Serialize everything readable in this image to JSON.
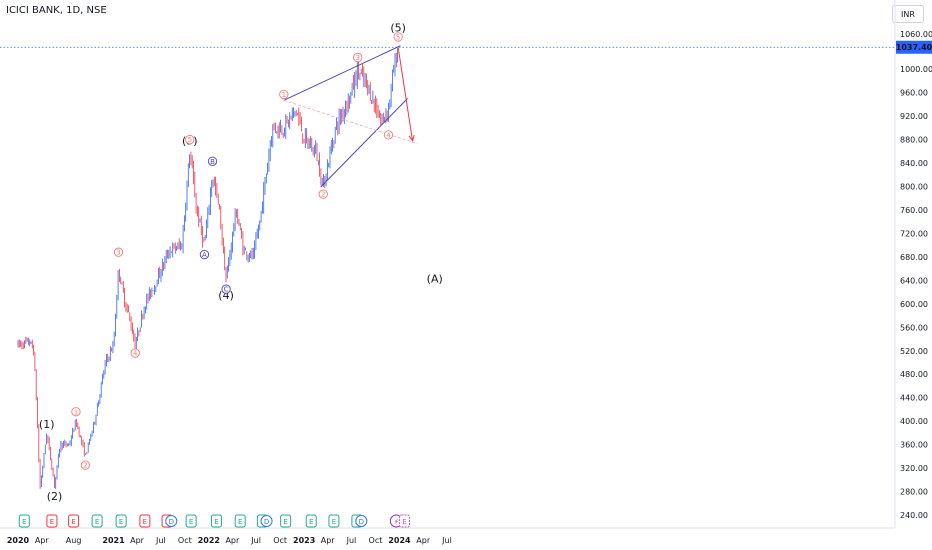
{
  "header": {
    "symbol": "ICICI BANK, 1D, NSE",
    "currency": "INR"
  },
  "last_price": "1037.40",
  "colors": {
    "up": "#2962ff",
    "down": "#f23645",
    "pattern": "#4a45b8",
    "minor": "#f77a7a",
    "earnings": "#22ab94",
    "dividend": "#3179f5"
  },
  "chart_data": {
    "type": "candlestick",
    "ylim": [
      230,
      1085
    ],
    "y_ticks": [
      "1060.00",
      "1000.00",
      "960.00",
      "920.00",
      "880.00",
      "840.00",
      "800.00",
      "760.00",
      "720.00",
      "680.00",
      "640.00",
      "600.00",
      "560.00",
      "520.00",
      "480.00",
      "440.00",
      "400.00",
      "360.00",
      "320.00",
      "280.00",
      "240.00"
    ],
    "x_ticks": [
      "2020",
      "Apr",
      "Aug",
      "2021",
      "Apr",
      "Jul",
      "Oct",
      "2022",
      "Apr",
      "Jul",
      "Oct",
      "2023",
      "Apr",
      "Jul",
      "Oct",
      "2024",
      "Apr",
      "Jul"
    ],
    "price_path": [
      [
        "2020-01-01",
        530
      ],
      [
        "2020-02-15",
        535
      ],
      [
        "2020-03-01",
        520
      ],
      [
        "2020-03-12",
        430
      ],
      [
        "2020-03-25",
        285
      ],
      [
        "2020-04-20",
        380
      ],
      [
        "2020-05-20",
        290
      ],
      [
        "2020-06-10",
        360
      ],
      [
        "2020-07-15",
        360
      ],
      [
        "2020-08-10",
        400
      ],
      [
        "2020-09-15",
        340
      ],
      [
        "2020-10-20",
        400
      ],
      [
        "2020-12-01",
        500
      ],
      [
        "2021-01-01",
        530
      ],
      [
        "2021-01-20",
        660
      ],
      [
        "2021-02-10",
        610
      ],
      [
        "2021-03-01",
        580
      ],
      [
        "2021-03-25",
        530
      ],
      [
        "2021-05-01",
        600
      ],
      [
        "2021-06-15",
        640
      ],
      [
        "2021-08-01",
        690
      ],
      [
        "2021-09-20",
        700
      ],
      [
        "2021-10-20",
        860
      ],
      [
        "2021-11-15",
        760
      ],
      [
        "2021-12-15",
        700
      ],
      [
        "2022-01-15",
        820
      ],
      [
        "2022-02-10",
        760
      ],
      [
        "2022-03-08",
        640
      ],
      [
        "2022-04-15",
        760
      ],
      [
        "2022-05-15",
        690
      ],
      [
        "2022-06-20",
        680
      ],
      [
        "2022-07-15",
        740
      ],
      [
        "2022-09-01",
        900
      ],
      [
        "2022-10-15",
        900
      ],
      [
        "2022-12-01",
        930
      ],
      [
        "2023-01-01",
        880
      ],
      [
        "2023-02-15",
        860
      ],
      [
        "2023-03-15",
        800
      ],
      [
        "2023-05-01",
        900
      ],
      [
        "2023-07-01",
        960
      ],
      [
        "2023-07-25",
        1000
      ],
      [
        "2023-09-10",
        960
      ],
      [
        "2023-10-25",
        910
      ],
      [
        "2023-11-20",
        935
      ],
      [
        "2023-12-10",
        1000
      ],
      [
        "2023-12-27",
        1037
      ]
    ],
    "waves_major": [
      {
        "label": "(1)",
        "date": "2020-04-20",
        "price": 395
      },
      {
        "label": "(2)",
        "date": "2020-05-20",
        "price": 272
      },
      {
        "label": "(3)",
        "date": "2021-10-20",
        "price": 878
      },
      {
        "label": "(4)",
        "date": "2022-03-08",
        "price": 615
      },
      {
        "label": "(5)",
        "date": "2023-12-27",
        "price": 1071
      },
      {
        "label": "(A)",
        "date": "2024-05-15",
        "price": 643
      }
    ],
    "waves_minor": [
      {
        "label": "1",
        "date": "2020-08-10",
        "price": 416,
        "style": "minor"
      },
      {
        "label": "2",
        "date": "2020-09-15",
        "price": 325,
        "style": "minor"
      },
      {
        "label": "3",
        "date": "2021-01-20",
        "price": 688,
        "style": "minor"
      },
      {
        "label": "4",
        "date": "2021-03-25",
        "price": 516,
        "style": "minor"
      },
      {
        "label": "5",
        "date": "2021-10-20",
        "price": 880,
        "style": "minor"
      },
      {
        "label": "A",
        "date": "2021-12-15",
        "price": 684,
        "style": "pattern"
      },
      {
        "label": "B",
        "date": "2022-01-15",
        "price": 843,
        "style": "pattern"
      },
      {
        "label": "C",
        "date": "2022-03-08",
        "price": 625,
        "style": "pattern"
      },
      {
        "label": "1",
        "date": "2022-10-15",
        "price": 957,
        "style": "minor"
      },
      {
        "label": "2",
        "date": "2023-03-15",
        "price": 787,
        "style": "minor"
      },
      {
        "label": "3",
        "date": "2023-07-25",
        "price": 1020,
        "style": "minor"
      },
      {
        "label": "4",
        "date": "2023-11-20",
        "price": 888,
        "style": "minor"
      },
      {
        "label": "5",
        "date": "2023-12-27",
        "price": 1055,
        "style": "minor"
      }
    ],
    "trendlines": [
      {
        "from": [
          "2022-10-15",
          947
        ],
        "to": [
          "2024-01-05",
          1040
        ],
        "style": "pattern"
      },
      {
        "from": [
          "2023-03-05",
          799
        ],
        "to": [
          "2024-02-01",
          950
        ],
        "style": "pattern"
      },
      {
        "from": [
          "2022-10-15",
          947
        ],
        "to": [
          "2024-03-10",
          873
        ],
        "style": "faint"
      },
      {
        "from": [
          "2023-12-27",
          1037
        ],
        "to": [
          "2024-02-20",
          878
        ],
        "style": "arrow"
      }
    ],
    "events": [
      {
        "type": "E",
        "date": "2020-01-25",
        "color": "earnings"
      },
      {
        "type": "E",
        "date": "2020-05-10",
        "color": "down"
      },
      {
        "type": "E",
        "date": "2020-08-01",
        "color": "down"
      },
      {
        "type": "E",
        "date": "2020-10-30",
        "color": "earnings"
      },
      {
        "type": "E",
        "date": "2021-01-30",
        "color": "earnings"
      },
      {
        "type": "E",
        "date": "2021-05-01",
        "color": "down"
      },
      {
        "type": "E",
        "date": "2021-07-25",
        "color": "down"
      },
      {
        "type": "D",
        "date": "2021-08-10",
        "color": "dividend"
      },
      {
        "type": "E",
        "date": "2021-10-25",
        "color": "earnings"
      },
      {
        "type": "E",
        "date": "2022-01-30",
        "color": "earnings"
      },
      {
        "type": "E",
        "date": "2022-05-01",
        "color": "earnings"
      },
      {
        "type": "E",
        "date": "2022-07-25",
        "color": "earnings"
      },
      {
        "type": "D",
        "date": "2022-08-10",
        "color": "dividend"
      },
      {
        "type": "E",
        "date": "2022-10-22",
        "color": "earnings"
      },
      {
        "type": "E",
        "date": "2023-01-28",
        "color": "earnings"
      },
      {
        "type": "E",
        "date": "2023-04-25",
        "color": "earnings"
      },
      {
        "type": "E",
        "date": "2023-07-22",
        "color": "earnings"
      },
      {
        "type": "D",
        "date": "2023-08-08",
        "color": "dividend"
      },
      {
        "type": "S",
        "date": "2023-12-20",
        "color": "split"
      },
      {
        "type": "E",
        "date": "2024-01-20",
        "color": "future"
      }
    ]
  }
}
